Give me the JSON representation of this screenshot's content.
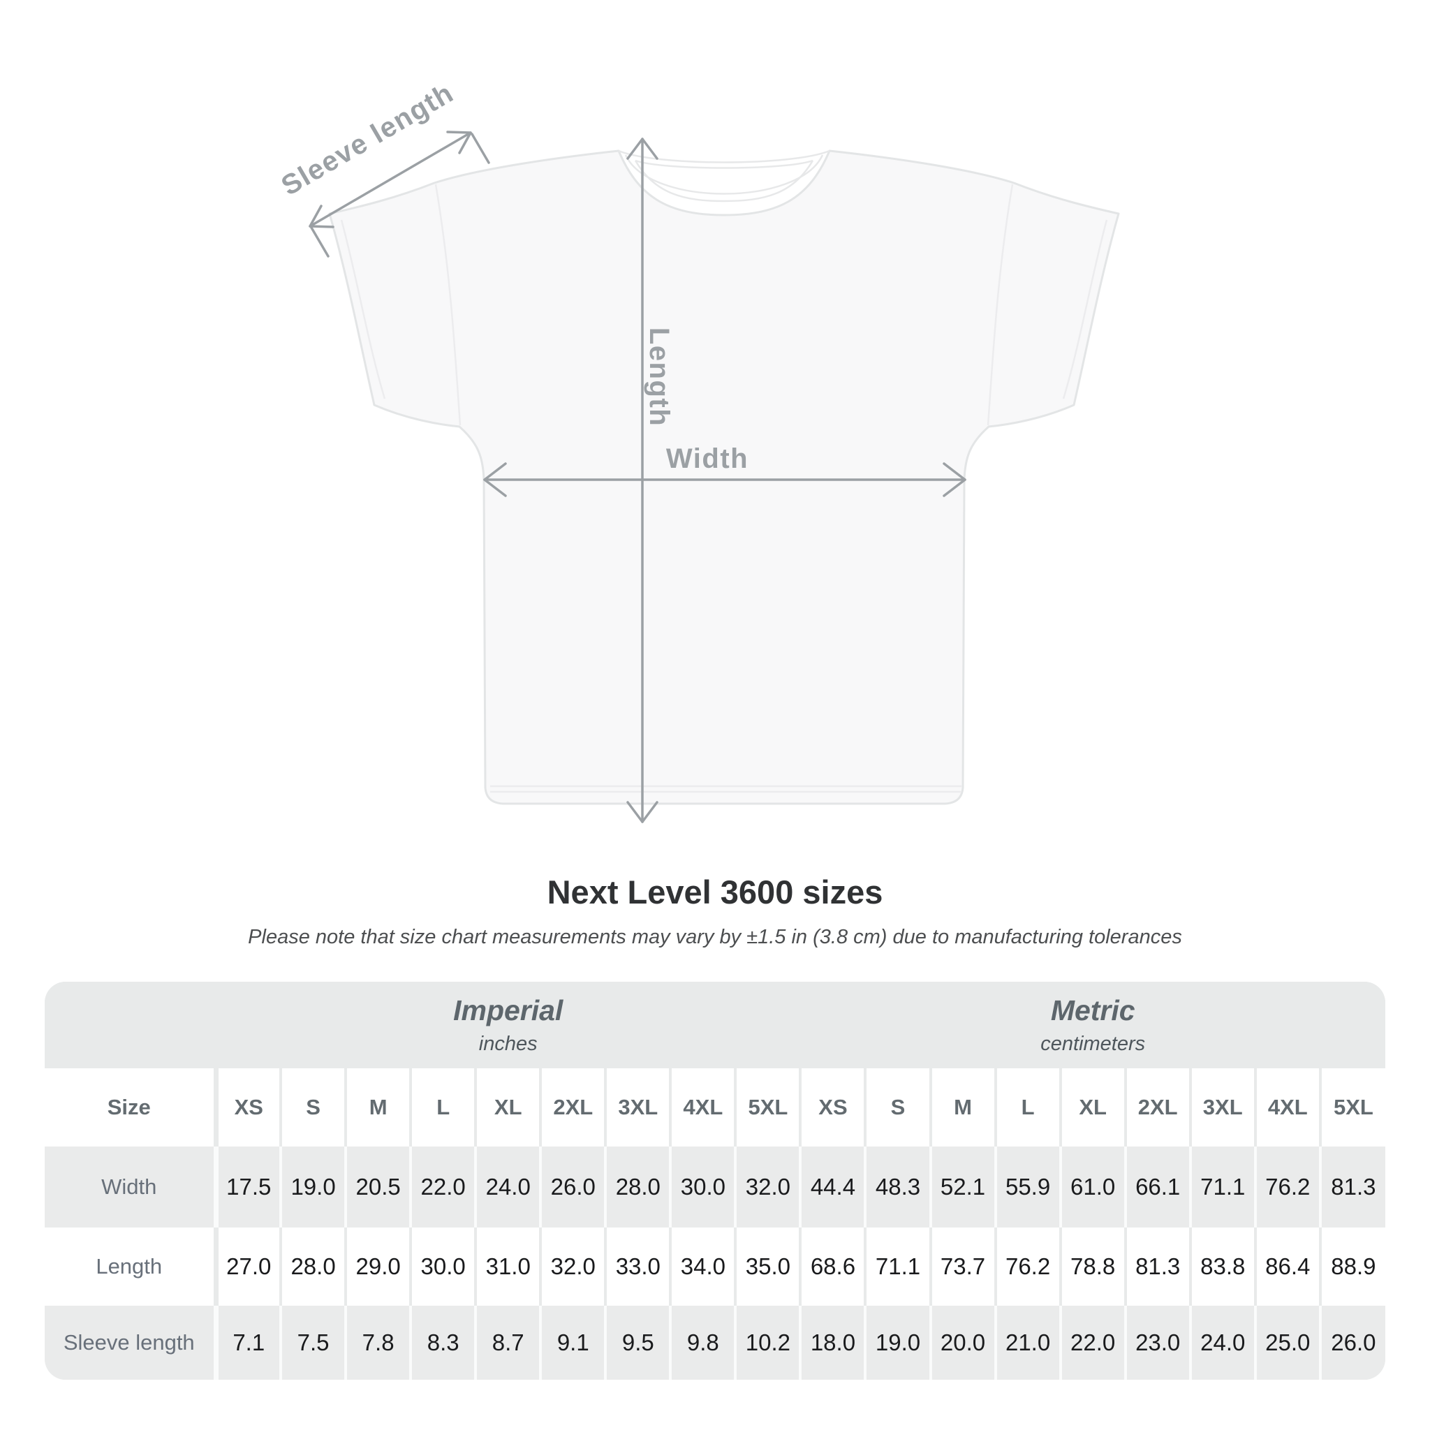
{
  "page": {
    "title": "Next Level 3600 sizes",
    "subtitle": "Please note that size chart measurements may vary by ±1.5 in (3.8 cm) due to manufacturing tolerances"
  },
  "diagram": {
    "labels": {
      "sleeve": "Sleeve length",
      "length": "Length",
      "width": "Width"
    }
  },
  "table": {
    "corner_label": "Size",
    "groups": [
      {
        "name": "Imperial",
        "unit": "inches"
      },
      {
        "name": "Metric",
        "unit": "centimeters"
      }
    ],
    "sizes": [
      "XS",
      "S",
      "M",
      "L",
      "XL",
      "2XL",
      "3XL",
      "4XL",
      "5XL"
    ],
    "rows": [
      {
        "label": "Width",
        "imperial": [
          "17.5",
          "19.0",
          "20.5",
          "22.0",
          "24.0",
          "26.0",
          "28.0",
          "30.0",
          "32.0"
        ],
        "metric": [
          "44.4",
          "48.3",
          "52.1",
          "55.9",
          "61.0",
          "66.1",
          "71.1",
          "76.2",
          "81.3"
        ]
      },
      {
        "label": "Length",
        "imperial": [
          "27.0",
          "28.0",
          "29.0",
          "30.0",
          "31.0",
          "32.0",
          "33.0",
          "34.0",
          "35.0"
        ],
        "metric": [
          "68.6",
          "71.1",
          "73.7",
          "76.2",
          "78.8",
          "81.3",
          "83.8",
          "86.4",
          "88.9"
        ]
      },
      {
        "label": "Sleeve length",
        "imperial": [
          "7.1",
          "7.5",
          "7.8",
          "8.3",
          "8.7",
          "9.1",
          "9.5",
          "9.8",
          "10.2"
        ],
        "metric": [
          "18.0",
          "19.0",
          "20.0",
          "21.0",
          "22.0",
          "23.0",
          "24.0",
          "25.0",
          "26.0"
        ]
      }
    ]
  },
  "colors": {
    "arrow_gray": "#9ba0a4",
    "band_gray": "#e8eaea",
    "row_gray": "#eaebeb",
    "label_gray": "#68707a",
    "title_dark": "#303234",
    "value_dark": "#191a1c",
    "shirt_fill": "#f8f8f9",
    "shirt_line": "#e3e5e6"
  },
  "chart_data": {
    "type": "table",
    "title": "Next Level 3600 sizes",
    "note": "Measurements may vary by ±1.5 in (3.8 cm) due to manufacturing tolerances",
    "unit_groups": [
      "Imperial (inches)",
      "Metric (centimeters)"
    ],
    "sizes": [
      "XS",
      "S",
      "M",
      "L",
      "XL",
      "2XL",
      "3XL",
      "4XL",
      "5XL"
    ],
    "measurements": [
      {
        "name": "Width",
        "imperial_in": [
          17.5,
          19.0,
          20.5,
          22.0,
          24.0,
          26.0,
          28.0,
          30.0,
          32.0
        ],
        "metric_cm": [
          44.4,
          48.3,
          52.1,
          55.9,
          61.0,
          66.1,
          71.1,
          76.2,
          81.3
        ]
      },
      {
        "name": "Length",
        "imperial_in": [
          27.0,
          28.0,
          29.0,
          30.0,
          31.0,
          32.0,
          33.0,
          34.0,
          35.0
        ],
        "metric_cm": [
          68.6,
          71.1,
          73.7,
          76.2,
          78.8,
          81.3,
          83.8,
          86.4,
          88.9
        ]
      },
      {
        "name": "Sleeve length",
        "imperial_in": [
          7.1,
          7.5,
          7.8,
          8.3,
          8.7,
          9.1,
          9.5,
          9.8,
          10.2
        ],
        "metric_cm": [
          18.0,
          19.0,
          20.0,
          21.0,
          22.0,
          23.0,
          24.0,
          25.0,
          26.0
        ]
      }
    ]
  }
}
